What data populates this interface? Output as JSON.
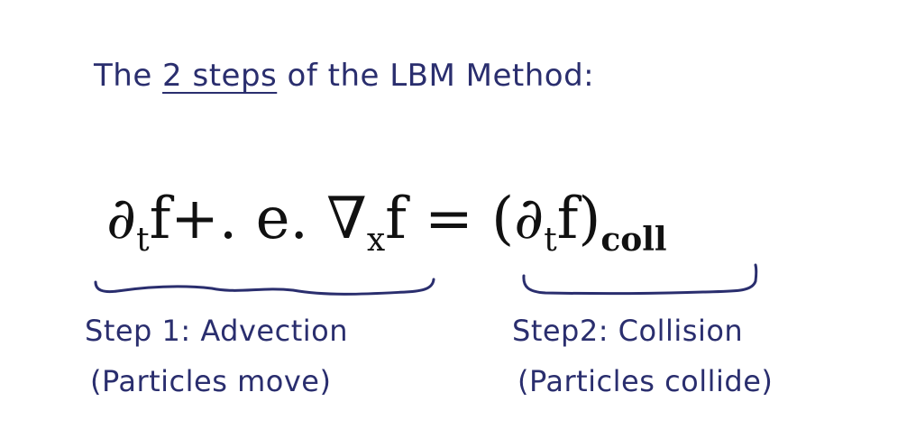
{
  "title": {
    "prefix": "The ",
    "underlined": "2 steps",
    "suffix": " of the LBM Method:"
  },
  "equation": {
    "partial": "∂",
    "sub_t": "t",
    "lhs_mid": "f+. e. ∇",
    "sub_x": "x",
    "lhs_end": "f",
    "equals": " = ",
    "rhs_open": "(∂",
    "rhs_sub_t": "t",
    "rhs_close": "f)",
    "rhs_sub": "coll"
  },
  "step1": {
    "label": "Step 1: Advection",
    "desc": "(Particles move)"
  },
  "step2": {
    "label": "Step2: Collision",
    "desc": "(Particles collide)"
  },
  "colors": {
    "ink": "#2a2e6e",
    "equation": "#111111",
    "background": "#ffffff"
  }
}
